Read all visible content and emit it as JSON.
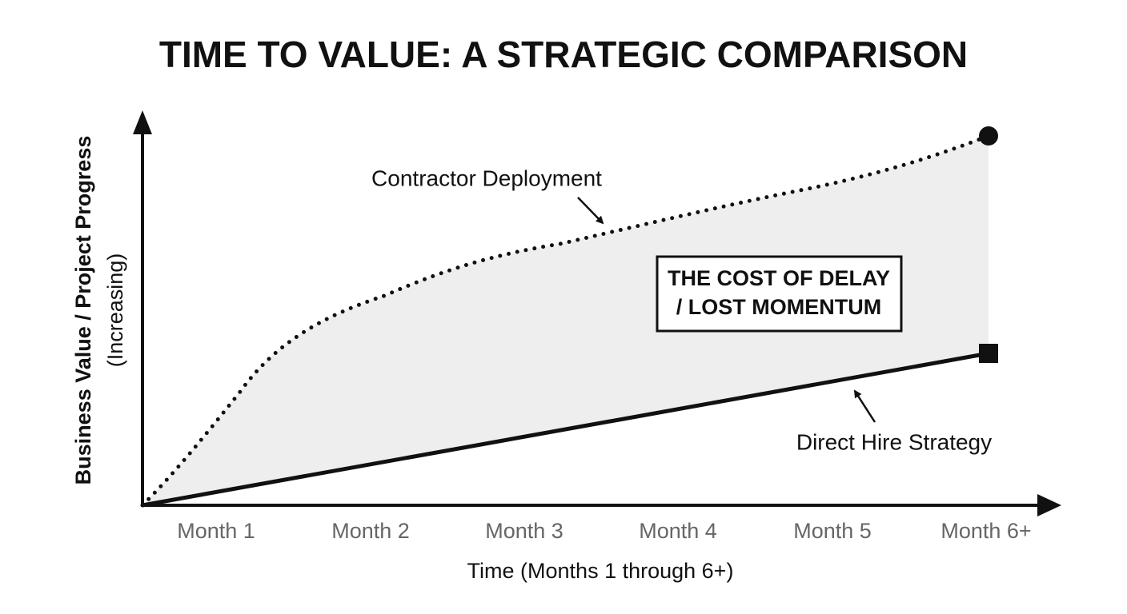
{
  "title": "TIME TO VALUE: A STRATEGIC COMPARISON",
  "y_axis": {
    "title": "Business Value / Project Progress",
    "subtitle": "(Increasing)"
  },
  "x_axis": {
    "title": "Time (Months 1 through 6+)",
    "labels": [
      "Month 1",
      "Month 2",
      "Month 3",
      "Month 4",
      "Month 5",
      "Month 6+"
    ]
  },
  "annotations": {
    "contractor": "Contractor Deployment",
    "direct_hire": "Direct Hire Strategy",
    "gap": [
      "THE COST OF DELAY",
      "/ LOST MOMENTUM"
    ]
  }
}
